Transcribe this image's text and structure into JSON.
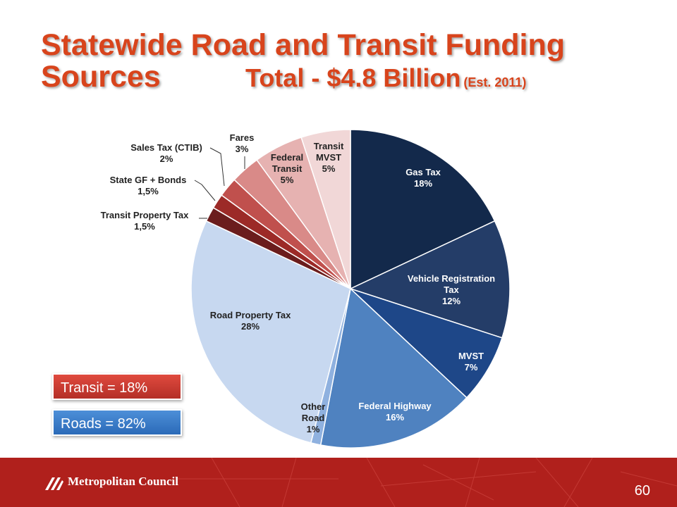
{
  "title": {
    "line1": "Statewide Road and Transit Funding",
    "line2": "Sources",
    "total": "Total - $4.8 Billion",
    "est": "(Est. 2011)"
  },
  "chart_data": {
    "type": "pie",
    "slices": [
      {
        "label": [
          "Gas Tax",
          "18%"
        ],
        "value": 18,
        "color": "#13294b"
      },
      {
        "label": [
          "Vehicle Registration",
          "Tax",
          "12%"
        ],
        "value": 12,
        "color": "#243d68"
      },
      {
        "label": [
          "MVST",
          "7%"
        ],
        "value": 7,
        "color": "#1e4788"
      },
      {
        "label": [
          "Federal Highway",
          "16%"
        ],
        "value": 16,
        "color": "#4f82c0"
      },
      {
        "label": [
          "Other",
          "Road",
          "1%"
        ],
        "value": 1,
        "color": "#8fb1df"
      },
      {
        "label": [
          "Road Property Tax",
          "28%"
        ],
        "value": 28,
        "color": "#c7d8f0"
      },
      {
        "label": [
          "Transit Property Tax",
          "1,5%"
        ],
        "value": 1.5,
        "color": "#6b1d1d"
      },
      {
        "label": [
          "State GF + Bonds",
          "1,5%"
        ],
        "value": 1.5,
        "color": "#9c2a27"
      },
      {
        "label": [
          "Sales Tax (CTIB)",
          "2%"
        ],
        "value": 2,
        "color": "#c0504d"
      },
      {
        "label": [
          "Fares",
          "3%"
        ],
        "value": 3,
        "color": "#d98a88"
      },
      {
        "label": [
          "Federal",
          "Transit",
          "5%"
        ],
        "value": 5,
        "color": "#e6b2b1"
      },
      {
        "label": [
          "Transit",
          "MVST",
          "5%"
        ],
        "value": 5,
        "color": "#f1d7d7"
      }
    ]
  },
  "badges": {
    "transit": "Transit = 18%",
    "roads": "Roads = 82%"
  },
  "footer": {
    "org": "Metropolitan Council",
    "page": "60"
  }
}
